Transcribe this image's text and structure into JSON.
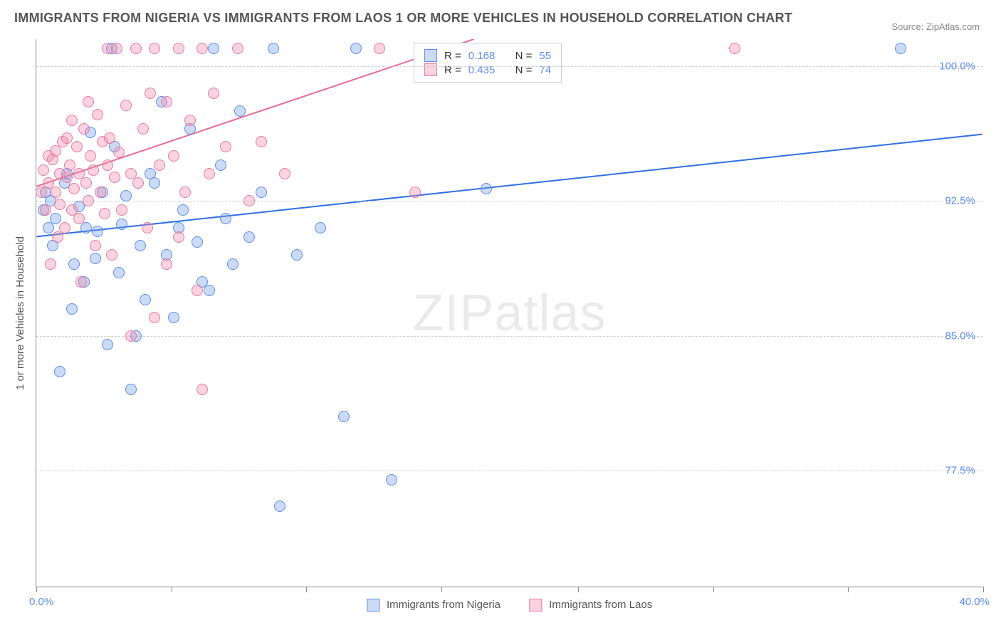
{
  "title": "IMMIGRANTS FROM NIGERIA VS IMMIGRANTS FROM LAOS 1 OR MORE VEHICLES IN HOUSEHOLD CORRELATION CHART",
  "source": "Source: ZipAtlas.com",
  "ylabel": "1 or more Vehicles in Household",
  "watermark": "ZIPatlas",
  "chart": {
    "type": "scatter",
    "xlim": [
      0.0,
      40.0
    ],
    "ylim": [
      71.0,
      101.5
    ],
    "xaxis_min_label": "0.0%",
    "xaxis_max_label": "40.0%",
    "xtick_positions": [
      0,
      5.7,
      11.4,
      17.1,
      22.9,
      28.6,
      34.3,
      40.0
    ],
    "ygrid": [
      {
        "v": 100.0,
        "label": "100.0%"
      },
      {
        "v": 92.5,
        "label": "92.5%"
      },
      {
        "v": 85.0,
        "label": "85.0%"
      },
      {
        "v": 77.5,
        "label": "77.5%"
      }
    ],
    "background_color": "#ffffff",
    "grid_color": "#cccccc",
    "axis_color": "#888888",
    "tick_label_color": "#5b8def",
    "marker_radius": 8,
    "marker_border_width": 1.2,
    "reg_line_width": 2
  },
  "series": [
    {
      "name": "Immigrants from Nigeria",
      "fill": "rgba(120,160,230,0.38)",
      "stroke": "#5b8def",
      "line_color": "#2f6fe0",
      "reg_x0": 0.0,
      "reg_y0": 90.5,
      "reg_x1": 40.0,
      "reg_y1": 96.2,
      "R": "0.168",
      "N": "55",
      "points": [
        [
          0.3,
          92.0
        ],
        [
          0.4,
          93.0
        ],
        [
          0.5,
          91.0
        ],
        [
          0.6,
          92.5
        ],
        [
          0.7,
          90.0
        ],
        [
          0.8,
          91.5
        ],
        [
          1.0,
          83.0
        ],
        [
          1.2,
          93.5
        ],
        [
          1.3,
          94.0
        ],
        [
          1.5,
          86.5
        ],
        [
          1.6,
          89.0
        ],
        [
          1.8,
          92.2
        ],
        [
          2.0,
          88.0
        ],
        [
          2.1,
          91.0
        ],
        [
          2.3,
          96.3
        ],
        [
          2.5,
          89.3
        ],
        [
          2.6,
          90.8
        ],
        [
          2.8,
          93.0
        ],
        [
          3.0,
          84.5
        ],
        [
          3.2,
          101.0
        ],
        [
          3.3,
          95.5
        ],
        [
          3.5,
          88.5
        ],
        [
          3.6,
          91.2
        ],
        [
          3.8,
          92.8
        ],
        [
          4.0,
          82.0
        ],
        [
          4.2,
          85.0
        ],
        [
          4.4,
          90.0
        ],
        [
          4.6,
          87.0
        ],
        [
          4.8,
          94.0
        ],
        [
          5.0,
          93.5
        ],
        [
          5.3,
          98.0
        ],
        [
          5.5,
          89.5
        ],
        [
          5.8,
          86.0
        ],
        [
          6.0,
          91.0
        ],
        [
          6.2,
          92.0
        ],
        [
          6.5,
          96.5
        ],
        [
          6.8,
          90.2
        ],
        [
          7.0,
          88.0
        ],
        [
          7.3,
          87.5
        ],
        [
          7.5,
          101.0
        ],
        [
          7.8,
          94.5
        ],
        [
          8.0,
          91.5
        ],
        [
          8.3,
          89.0
        ],
        [
          8.6,
          97.5
        ],
        [
          9.0,
          90.5
        ],
        [
          9.5,
          93.0
        ],
        [
          10.0,
          101.0
        ],
        [
          10.3,
          75.5
        ],
        [
          11.0,
          89.5
        ],
        [
          12.0,
          91.0
        ],
        [
          13.0,
          80.5
        ],
        [
          13.5,
          101.0
        ],
        [
          15.0,
          77.0
        ],
        [
          19.0,
          93.2
        ],
        [
          36.5,
          101.0
        ]
      ]
    },
    {
      "name": "Immigrants from Laos",
      "fill": "rgba(240,140,170,0.38)",
      "stroke": "#e87ba0",
      "line_color": "#e86b93",
      "reg_x0": 0.0,
      "reg_y0": 93.3,
      "reg_x1": 18.5,
      "reg_y1": 101.5,
      "R": "0.435",
      "N": "74",
      "points": [
        [
          0.2,
          93.0
        ],
        [
          0.3,
          94.2
        ],
        [
          0.4,
          92.0
        ],
        [
          0.5,
          95.0
        ],
        [
          0.5,
          93.5
        ],
        [
          0.6,
          89.0
        ],
        [
          0.7,
          94.8
        ],
        [
          0.8,
          93.0
        ],
        [
          0.8,
          95.3
        ],
        [
          0.9,
          90.5
        ],
        [
          1.0,
          94.0
        ],
        [
          1.0,
          92.3
        ],
        [
          1.1,
          95.8
        ],
        [
          1.2,
          91.0
        ],
        [
          1.3,
          93.8
        ],
        [
          1.3,
          96.0
        ],
        [
          1.4,
          94.5
        ],
        [
          1.5,
          97.0
        ],
        [
          1.5,
          92.0
        ],
        [
          1.6,
          93.2
        ],
        [
          1.7,
          95.5
        ],
        [
          1.8,
          91.5
        ],
        [
          1.8,
          94.0
        ],
        [
          1.9,
          88.0
        ],
        [
          2.0,
          96.5
        ],
        [
          2.1,
          93.5
        ],
        [
          2.2,
          98.0
        ],
        [
          2.2,
          92.5
        ],
        [
          2.3,
          95.0
        ],
        [
          2.4,
          94.2
        ],
        [
          2.5,
          90.0
        ],
        [
          2.6,
          97.3
        ],
        [
          2.7,
          93.0
        ],
        [
          2.8,
          95.8
        ],
        [
          2.9,
          91.8
        ],
        [
          3.0,
          101.0
        ],
        [
          3.0,
          94.5
        ],
        [
          3.1,
          96.0
        ],
        [
          3.2,
          89.5
        ],
        [
          3.3,
          93.8
        ],
        [
          3.4,
          101.0
        ],
        [
          3.5,
          95.2
        ],
        [
          3.6,
          92.0
        ],
        [
          3.8,
          97.8
        ],
        [
          4.0,
          85.0
        ],
        [
          4.0,
          94.0
        ],
        [
          4.2,
          101.0
        ],
        [
          4.3,
          93.5
        ],
        [
          4.5,
          96.5
        ],
        [
          4.7,
          91.0
        ],
        [
          4.8,
          98.5
        ],
        [
          5.0,
          86.0
        ],
        [
          5.0,
          101.0
        ],
        [
          5.2,
          94.5
        ],
        [
          5.5,
          89.0
        ],
        [
          5.5,
          98.0
        ],
        [
          5.8,
          95.0
        ],
        [
          6.0,
          90.5
        ],
        [
          6.0,
          101.0
        ],
        [
          6.3,
          93.0
        ],
        [
          6.5,
          97.0
        ],
        [
          6.8,
          87.5
        ],
        [
          7.0,
          101.0
        ],
        [
          7.0,
          82.0
        ],
        [
          7.3,
          94.0
        ],
        [
          7.5,
          98.5
        ],
        [
          8.0,
          95.5
        ],
        [
          8.5,
          101.0
        ],
        [
          9.0,
          92.5
        ],
        [
          9.5,
          95.8
        ],
        [
          10.5,
          94.0
        ],
        [
          14.5,
          101.0
        ],
        [
          16.0,
          93.0
        ],
        [
          29.5,
          101.0
        ]
      ]
    }
  ],
  "stat_box": {
    "R_label": "R =",
    "N_label": "N ="
  },
  "bottom_legend": {
    "s1": "Immigrants from Nigeria",
    "s2": "Immigrants from Laos"
  }
}
